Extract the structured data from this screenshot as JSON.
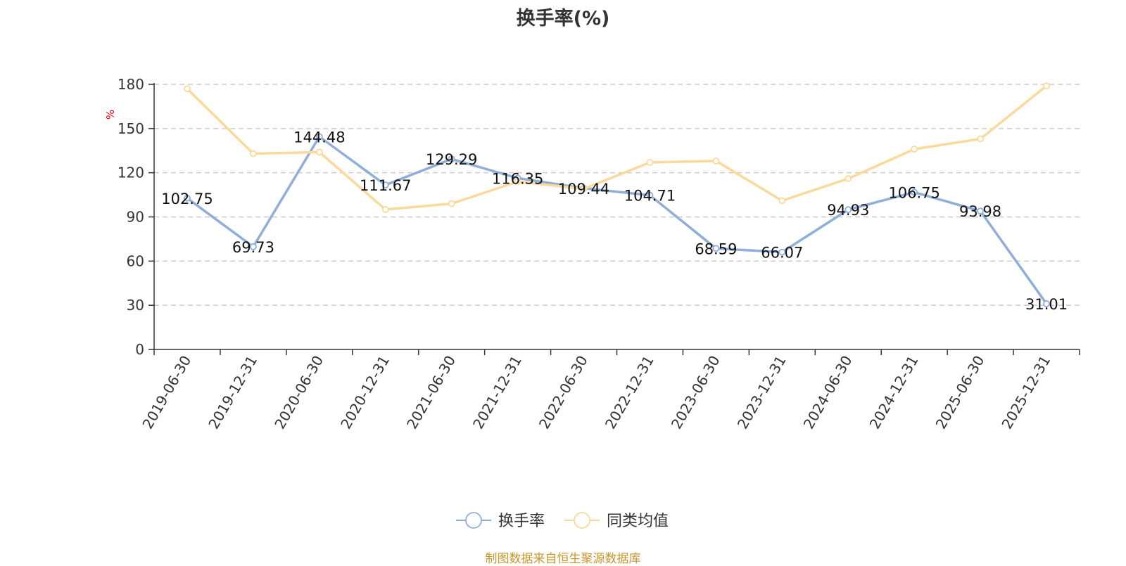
{
  "source_note": "制图数据来自恒生聚源数据库",
  "colors": {
    "series_turnover": "#8fafd9",
    "series_peer_avg": "#fbd99a",
    "grid": "#cccccc",
    "axis": "#333333",
    "unit": "#e00000"
  },
  "chart_data": {
    "type": "line",
    "title": "换手率(%)",
    "ylabel": "%",
    "ylim": [
      0,
      180
    ],
    "yticks": [
      0,
      30,
      60,
      90,
      120,
      150,
      180
    ],
    "grid": true,
    "legend": "bottom-center",
    "categories": [
      "2019-06-30",
      "2019-12-31",
      "2020-06-30",
      "2020-12-31",
      "2021-06-30",
      "2021-12-31",
      "2022-06-30",
      "2022-12-31",
      "2023-06-30",
      "2023-12-31",
      "2024-06-30",
      "2024-12-31",
      "2025-06-30",
      "2025-12-31"
    ],
    "series": [
      {
        "name": "换手率",
        "color": "#8fafd9",
        "values": [
          102.75,
          69.73,
          144.48,
          111.67,
          129.29,
          116.35,
          109.44,
          104.71,
          68.59,
          66.07,
          94.93,
          106.75,
          93.98,
          31.01
        ],
        "labels": [
          "102.75",
          "69.73",
          "144.48",
          "111.67",
          "129.29",
          "116.35",
          "109.44",
          "104.71",
          "68.59",
          "66.07",
          "94.93",
          "106.75",
          "93.98",
          "31.01"
        ]
      },
      {
        "name": "同类均值",
        "color": "#fbd99a",
        "values": [
          177,
          133,
          134,
          95,
          99,
          114,
          109,
          127,
          128,
          101,
          116,
          136,
          143,
          179
        ]
      }
    ]
  }
}
